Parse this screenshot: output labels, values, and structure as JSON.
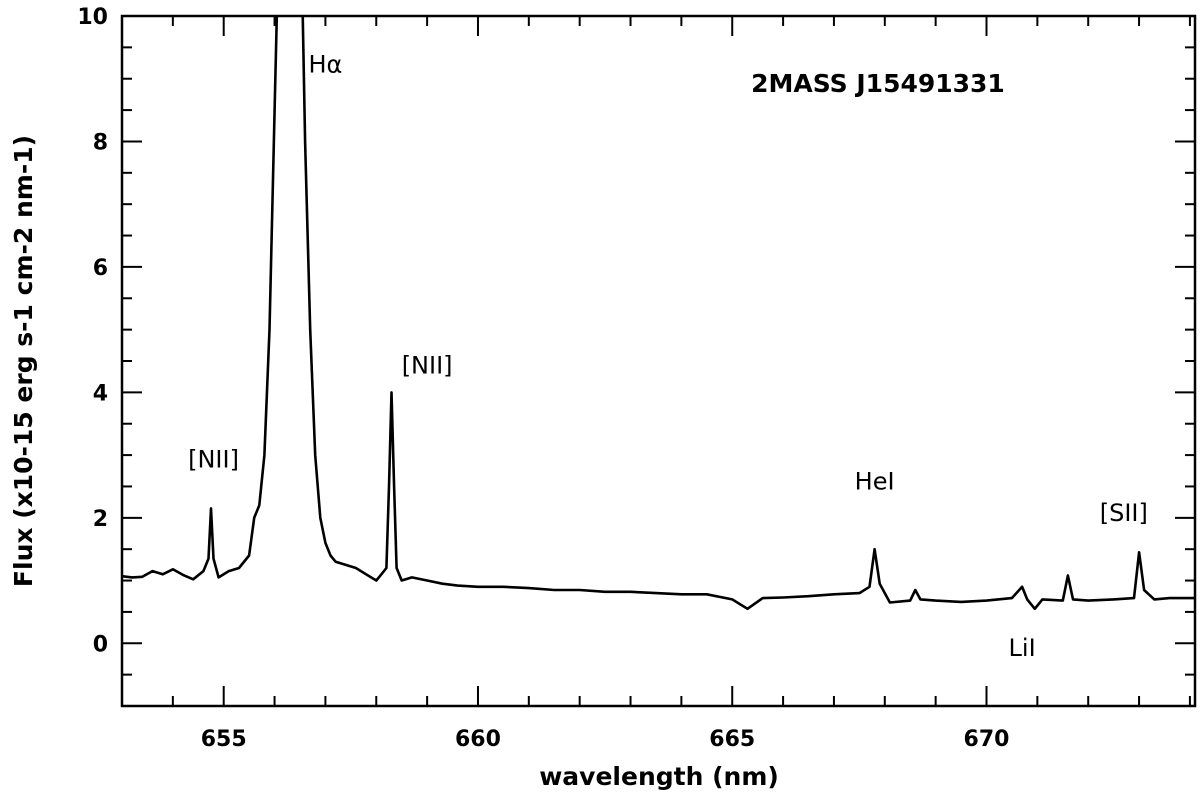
{
  "chart_data": {
    "type": "line",
    "xlabel": "wavelength (nm)",
    "ylabel": "Flux (x10-15 erg s-1 cm-2 nm-1)",
    "object_label": "2MASS J15491331",
    "xlim": [
      653.0,
      674.1
    ],
    "ylim": [
      -1.0,
      10.0
    ],
    "x_ticks": [
      655,
      660,
      665,
      670
    ],
    "y_ticks": [
      0,
      2,
      4,
      6,
      8,
      10
    ],
    "grid": false,
    "series": [
      {
        "points": [
          [
            653.0,
            1.07
          ],
          [
            653.2,
            1.05
          ],
          [
            653.4,
            1.06
          ],
          [
            653.6,
            1.15
          ],
          [
            653.8,
            1.1
          ],
          [
            654.0,
            1.18
          ],
          [
            654.2,
            1.09
          ],
          [
            654.4,
            1.02
          ],
          [
            654.6,
            1.15
          ],
          [
            654.7,
            1.35
          ],
          [
            654.75,
            2.15
          ],
          [
            654.8,
            1.35
          ],
          [
            654.9,
            1.05
          ],
          [
            655.1,
            1.15
          ],
          [
            655.3,
            1.2
          ],
          [
            655.5,
            1.4
          ],
          [
            655.6,
            2.0
          ],
          [
            655.7,
            2.2
          ],
          [
            655.8,
            3.0
          ],
          [
            655.9,
            5.0
          ],
          [
            656.0,
            8.5
          ],
          [
            656.05,
            10.2
          ],
          [
            656.1,
            10.5
          ],
          [
            656.3,
            10.5
          ],
          [
            656.5,
            10.5
          ],
          [
            656.55,
            10.2
          ],
          [
            656.6,
            8.0
          ],
          [
            656.7,
            5.0
          ],
          [
            656.8,
            3.0
          ],
          [
            656.9,
            2.0
          ],
          [
            657.0,
            1.6
          ],
          [
            657.1,
            1.4
          ],
          [
            657.2,
            1.3
          ],
          [
            657.4,
            1.25
          ],
          [
            657.6,
            1.2
          ],
          [
            657.8,
            1.1
          ],
          [
            658.0,
            1.0
          ],
          [
            658.1,
            1.1
          ],
          [
            658.2,
            1.2
          ],
          [
            658.25,
            2.5
          ],
          [
            658.3,
            4.0
          ],
          [
            658.35,
            2.5
          ],
          [
            658.4,
            1.2
          ],
          [
            658.5,
            1.0
          ],
          [
            658.7,
            1.05
          ],
          [
            659.0,
            1.0
          ],
          [
            659.3,
            0.95
          ],
          [
            659.6,
            0.92
          ],
          [
            660.0,
            0.9
          ],
          [
            660.5,
            0.9
          ],
          [
            661.0,
            0.88
          ],
          [
            661.5,
            0.85
          ],
          [
            662.0,
            0.85
          ],
          [
            662.5,
            0.82
          ],
          [
            663.0,
            0.82
          ],
          [
            663.5,
            0.8
          ],
          [
            664.0,
            0.78
          ],
          [
            664.5,
            0.78
          ],
          [
            665.0,
            0.7
          ],
          [
            665.3,
            0.55
          ],
          [
            665.6,
            0.72
          ],
          [
            666.0,
            0.73
          ],
          [
            666.5,
            0.75
          ],
          [
            667.0,
            0.78
          ],
          [
            667.5,
            0.8
          ],
          [
            667.7,
            0.9
          ],
          [
            667.8,
            1.5
          ],
          [
            667.9,
            0.95
          ],
          [
            668.1,
            0.65
          ],
          [
            668.5,
            0.68
          ],
          [
            668.6,
            0.85
          ],
          [
            668.7,
            0.7
          ],
          [
            669.0,
            0.68
          ],
          [
            669.5,
            0.66
          ],
          [
            670.0,
            0.68
          ],
          [
            670.5,
            0.72
          ],
          [
            670.7,
            0.9
          ],
          [
            670.8,
            0.7
          ],
          [
            670.95,
            0.55
          ],
          [
            671.1,
            0.7
          ],
          [
            671.5,
            0.68
          ],
          [
            671.6,
            1.08
          ],
          [
            671.7,
            0.7
          ],
          [
            672.0,
            0.68
          ],
          [
            672.5,
            0.7
          ],
          [
            672.9,
            0.72
          ],
          [
            673.0,
            1.45
          ],
          [
            673.1,
            0.85
          ],
          [
            673.3,
            0.7
          ],
          [
            673.6,
            0.72
          ],
          [
            674.1,
            0.72
          ]
        ]
      }
    ],
    "annotations": [
      {
        "text": "[NII]",
        "x": 654.8,
        "y": 2.8
      },
      {
        "text": "Hα",
        "x": 657.0,
        "y": 9.1
      },
      {
        "text": "[NII]",
        "x": 659.0,
        "y": 4.3
      },
      {
        "text": "HeI",
        "x": 667.8,
        "y": 2.45
      },
      {
        "text": "LiI",
        "x": 670.7,
        "y": -0.2
      },
      {
        "text": "[SII]",
        "x": 672.7,
        "y": 1.95
      }
    ]
  }
}
